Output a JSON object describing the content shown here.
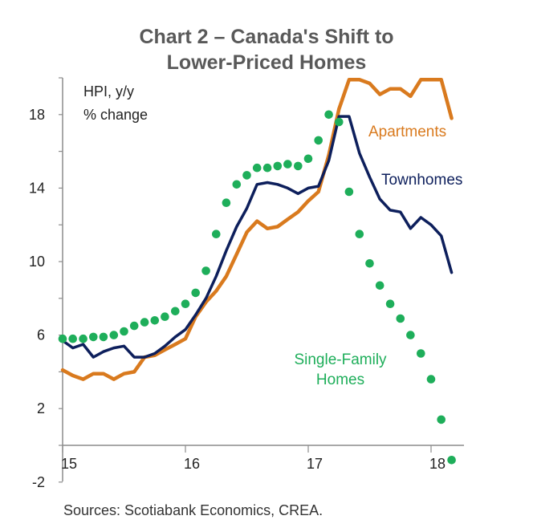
{
  "chart_data": {
    "type": "line",
    "title_line1": "Chart 2 – Canada's Shift to",
    "title_line2": "Lower-Priced Homes",
    "unit_line1": "HPI, y/y",
    "unit_line2": "% change",
    "source": "Sources: Scotiabank Economics, CREA.",
    "xlim": [
      15,
      18.25
    ],
    "ylim": [
      -2,
      20
    ],
    "x_ticks": [
      "15",
      "16",
      "17",
      "18"
    ],
    "y_ticks": [
      "-2",
      "2",
      "6",
      "10",
      "14",
      "18"
    ],
    "grid": false,
    "series": [
      {
        "name": "Apartments",
        "color": "#D97A1E",
        "style": "solid",
        "label_lines": [
          "Apartments"
        ],
        "x": [
          15.0,
          15.083,
          15.167,
          15.25,
          15.333,
          15.417,
          15.5,
          15.583,
          15.667,
          15.75,
          15.833,
          15.917,
          16.0,
          16.083,
          16.167,
          16.25,
          16.333,
          16.417,
          16.5,
          16.583,
          16.667,
          16.75,
          16.833,
          16.917,
          17.0,
          17.083,
          17.167,
          17.25,
          17.333,
          17.417,
          17.5,
          17.583,
          17.667,
          17.75,
          17.833,
          17.917,
          18.0,
          18.083,
          18.167
        ],
        "values": [
          4.1,
          3.8,
          3.6,
          3.9,
          3.9,
          3.6,
          3.9,
          4.0,
          4.8,
          4.9,
          5.2,
          5.5,
          5.8,
          7.0,
          7.8,
          8.4,
          9.2,
          10.4,
          11.6,
          12.2,
          11.8,
          11.9,
          12.3,
          12.7,
          13.3,
          13.8,
          15.8,
          18.3,
          19.9,
          19.9,
          19.7,
          19.1,
          19.4,
          19.4,
          19.0,
          19.9,
          19.9,
          19.9,
          17.8
        ]
      },
      {
        "name": "Townhomes",
        "color": "#0D1F5C",
        "style": "solid",
        "label_lines": [
          "Townhomes"
        ],
        "x": [
          15.0,
          15.083,
          15.167,
          15.25,
          15.333,
          15.417,
          15.5,
          15.583,
          15.667,
          15.75,
          15.833,
          15.917,
          16.0,
          16.083,
          16.167,
          16.25,
          16.333,
          16.417,
          16.5,
          16.583,
          16.667,
          16.75,
          16.833,
          16.917,
          17.0,
          17.083,
          17.167,
          17.25,
          17.333,
          17.417,
          17.5,
          17.583,
          17.667,
          17.75,
          17.833,
          17.917,
          18.0,
          18.083,
          18.167
        ],
        "values": [
          5.7,
          5.3,
          5.5,
          4.8,
          5.1,
          5.3,
          5.4,
          4.8,
          4.8,
          5.0,
          5.4,
          5.9,
          6.3,
          7.1,
          8.0,
          9.2,
          10.6,
          11.9,
          12.9,
          14.2,
          14.3,
          14.2,
          14.0,
          13.7,
          14.0,
          14.1,
          15.5,
          17.9,
          17.9,
          15.9,
          14.6,
          13.4,
          12.8,
          12.7,
          11.8,
          12.4,
          12.0,
          11.4,
          9.4
        ]
      },
      {
        "name": "Single-Family Homes",
        "color": "#1EAE5A",
        "style": "dotted",
        "label_lines": [
          "Single-Family",
          "Homes"
        ],
        "x": [
          15.0,
          15.083,
          15.167,
          15.25,
          15.333,
          15.417,
          15.5,
          15.583,
          15.667,
          15.75,
          15.833,
          15.917,
          16.0,
          16.083,
          16.167,
          16.25,
          16.333,
          16.417,
          16.5,
          16.583,
          16.667,
          16.75,
          16.833,
          16.917,
          17.0,
          17.083,
          17.167,
          17.25,
          17.333,
          17.417,
          17.5,
          17.583,
          17.667,
          17.75,
          17.833,
          17.917,
          18.0,
          18.083,
          18.167
        ],
        "values": [
          5.8,
          5.8,
          5.8,
          5.9,
          5.9,
          6.0,
          6.2,
          6.5,
          6.7,
          6.8,
          7.0,
          7.3,
          7.7,
          8.3,
          9.5,
          11.5,
          13.2,
          14.2,
          14.7,
          15.1,
          15.1,
          15.2,
          15.3,
          15.2,
          15.6,
          16.6,
          18.0,
          17.6,
          13.8,
          11.5,
          9.9,
          8.7,
          7.7,
          6.9,
          6.0,
          5.0,
          3.6,
          1.4,
          -0.8
        ]
      }
    ]
  }
}
